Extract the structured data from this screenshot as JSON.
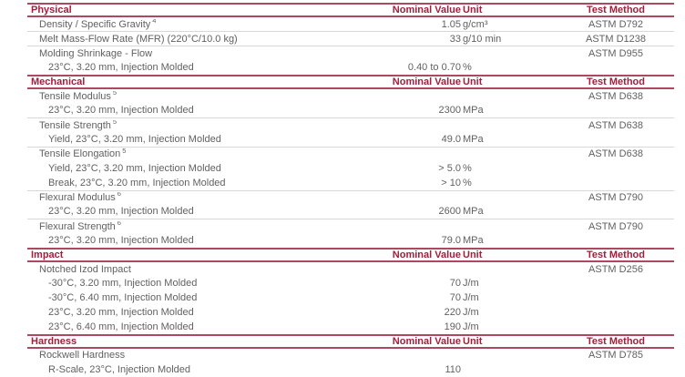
{
  "table": {
    "colors": {
      "accent_red_text": "#A11E3C",
      "accent_red_border": "#AC4860",
      "row_divider_gray": "#D8D8D8",
      "body_text_gray": "#616161"
    },
    "column_headers": {
      "nominal_value": "Nominal Value",
      "unit": "Unit",
      "test_method": "Test Method"
    },
    "sections": [
      {
        "name": "Physical",
        "groups": [
          [
            {
              "label": "Density / Specific Gravity",
              "sup": "4",
              "indent": 1,
              "value": "1.05",
              "unit": "g/cm³",
              "method": "ASTM D792"
            }
          ],
          [
            {
              "label": "Melt Mass-Flow Rate (MFR) (220°C/10.0 kg)",
              "indent": 1,
              "value": "33",
              "unit": "g/10 min",
              "method": "ASTM D1238"
            }
          ],
          [
            {
              "label": "Molding Shrinkage - Flow",
              "indent": 1,
              "method": "ASTM D955"
            },
            {
              "label": "23°C, 3.20 mm, Injection Molded",
              "indent": 2,
              "value": "0.40 to 0.70",
              "unit": "%"
            }
          ]
        ]
      },
      {
        "name": "Mechanical",
        "groups": [
          [
            {
              "label": "Tensile Modulus",
              "sup": "5",
              "indent": 1,
              "method": "ASTM D638"
            },
            {
              "label": "23°C, 3.20 mm, Injection Molded",
              "indent": 2,
              "value": "2300",
              "unit": "MPa"
            }
          ],
          [
            {
              "label": "Tensile Strength",
              "sup": "5",
              "indent": 1,
              "method": "ASTM D638"
            },
            {
              "label": "Yield, 23°C, 3.20 mm, Injection Molded",
              "indent": 2,
              "value": "49.0",
              "unit": "MPa"
            }
          ],
          [
            {
              "label": "Tensile Elongation",
              "sup": "5",
              "indent": 1,
              "method": "ASTM D638"
            },
            {
              "label": "Yield, 23°C, 3.20 mm, Injection Molded",
              "indent": 2,
              "value": "> 5.0",
              "unit": "%"
            },
            {
              "label": "Break, 23°C, 3.20 mm, Injection Molded",
              "indent": 2,
              "value": "> 10",
              "unit": "%"
            }
          ],
          [
            {
              "label": "Flexural Modulus",
              "sup": "6",
              "indent": 1,
              "method": "ASTM D790"
            },
            {
              "label": "23°C, 3.20 mm, Injection Molded",
              "indent": 2,
              "value": "2600",
              "unit": "MPa"
            }
          ],
          [
            {
              "label": "Flexural Strength",
              "sup": "6",
              "indent": 1,
              "method": "ASTM D790"
            },
            {
              "label": "23°C, 3.20 mm, Injection Molded",
              "indent": 2,
              "value": "79.0",
              "unit": "MPa"
            }
          ]
        ]
      },
      {
        "name": "Impact",
        "groups": [
          [
            {
              "label": "Notched Izod Impact",
              "indent": 1,
              "method": "ASTM D256"
            },
            {
              "label": "-30°C, 3.20 mm, Injection Molded",
              "indent": 2,
              "value": "70",
              "unit": "J/m"
            },
            {
              "label": "-30°C, 6.40 mm, Injection Molded",
              "indent": 2,
              "value": "70",
              "unit": "J/m"
            },
            {
              "label": "23°C, 3.20 mm, Injection Molded",
              "indent": 2,
              "value": "220",
              "unit": "J/m"
            },
            {
              "label": "23°C, 6.40 mm, Injection Molded",
              "indent": 2,
              "value": "190",
              "unit": "J/m"
            }
          ]
        ]
      },
      {
        "name": "Hardness",
        "groups": [
          [
            {
              "label": "Rockwell Hardness",
              "indent": 1,
              "method": "ASTM D785"
            },
            {
              "label": "R-Scale, 23°C, Injection Molded",
              "indent": 2,
              "value": "110"
            }
          ]
        ]
      }
    ]
  }
}
